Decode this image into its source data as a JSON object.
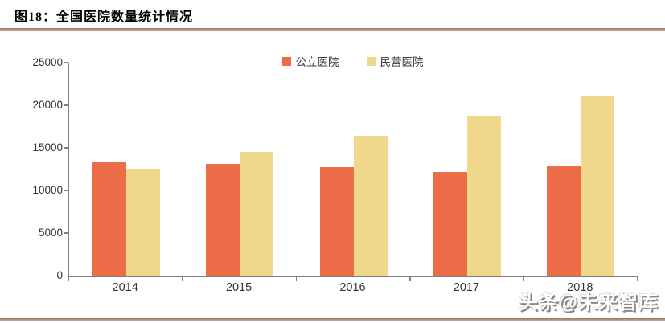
{
  "header": {
    "title": "图18：全国医院数量统计情况"
  },
  "footer": {
    "watermark": "头条@未来智库"
  },
  "colors": {
    "public_series": "#EB6C46",
    "private_series": "#EFD78C",
    "axis": "#7F7F7F",
    "tick_label": "#333333",
    "accent_rule": "#AC8573",
    "watermark_shadow": "#8A8A8A"
  },
  "chart_data": {
    "type": "bar",
    "title": "全国医院数量统计情况",
    "categories": [
      "2014",
      "2015",
      "2016",
      "2017",
      "2018"
    ],
    "series": [
      {
        "name": "公立医院",
        "color": "#EB6C46",
        "values": [
          13300,
          13100,
          12700,
          12200,
          12900
        ]
      },
      {
        "name": "民营医院",
        "color": "#EFD78C",
        "values": [
          12550,
          14500,
          16400,
          18800,
          21000
        ]
      }
    ],
    "xlabel": "",
    "ylabel": "",
    "ylim": [
      0,
      25000
    ],
    "yticks": [
      0,
      5000,
      10000,
      15000,
      20000,
      25000
    ],
    "grid": false,
    "legend_position": "top-center"
  }
}
